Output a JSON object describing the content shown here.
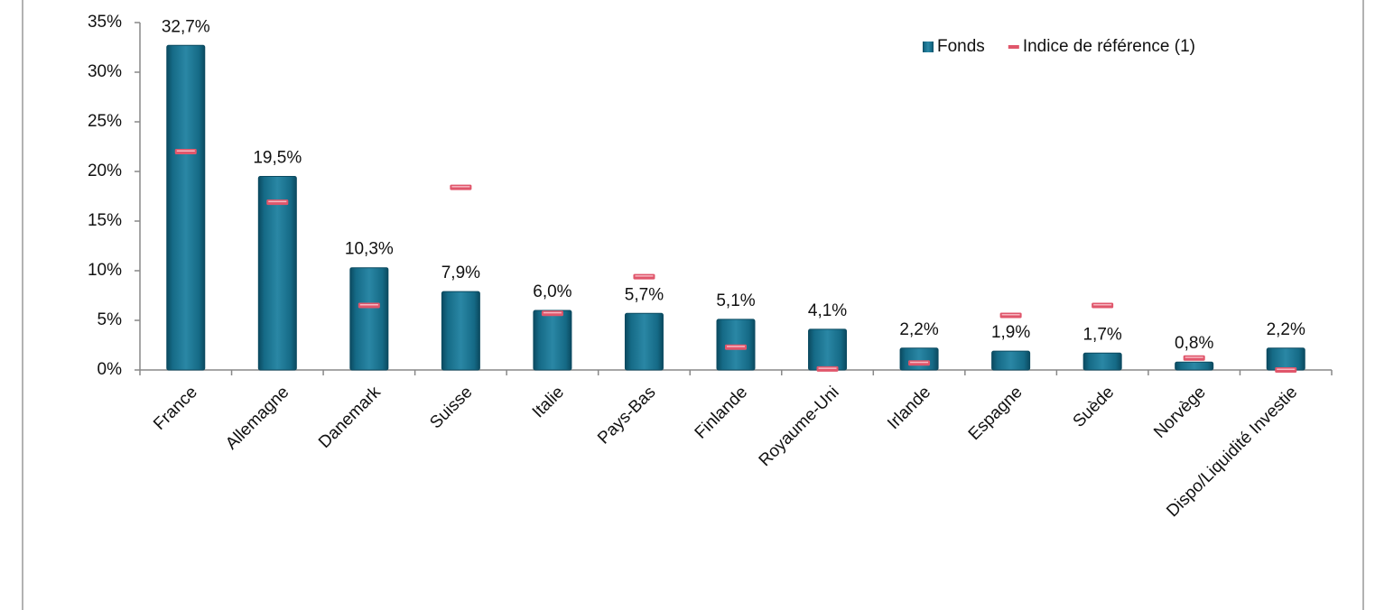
{
  "chart_data": {
    "type": "bar",
    "categories": [
      "France",
      "Allemagne",
      "Danemark",
      "Suisse",
      "Italie",
      "Pays-Bas",
      "Finlande",
      "Royaume-Uni",
      "Irlande",
      "Espagne",
      "Suède",
      "Norvège",
      "Dispo/Liquidité Investie"
    ],
    "series": [
      {
        "name": "Fonds",
        "type": "bar",
        "color": "#156a86",
        "values": [
          32.7,
          19.5,
          10.3,
          7.9,
          6.0,
          5.7,
          5.1,
          4.1,
          2.2,
          1.9,
          1.7,
          0.8,
          2.2
        ],
        "value_labels": [
          "32,7%",
          "19,5%",
          "10,3%",
          "7,9%",
          "6,0%",
          "5,7%",
          "5,1%",
          "4,1%",
          "2,2%",
          "1,9%",
          "1,7%",
          "0,8%",
          "2,2%"
        ]
      },
      {
        "name": "Indice de référence (1)",
        "type": "marker",
        "color": "#e0566b",
        "values": [
          22.0,
          16.9,
          6.5,
          18.4,
          5.7,
          9.4,
          2.3,
          0.1,
          0.7,
          5.5,
          6.5,
          1.2,
          0.0
        ]
      }
    ],
    "ylim": [
      0,
      35
    ],
    "yticks": [
      {
        "value": 0,
        "label": "0%"
      },
      {
        "value": 5,
        "label": "5%"
      },
      {
        "value": 10,
        "label": "10%"
      },
      {
        "value": 15,
        "label": "15%"
      },
      {
        "value": 20,
        "label": "20%"
      },
      {
        "value": 25,
        "label": "25%"
      },
      {
        "value": 30,
        "label": "30%"
      },
      {
        "value": 35,
        "label": "35%"
      }
    ],
    "legend": "top-right"
  }
}
